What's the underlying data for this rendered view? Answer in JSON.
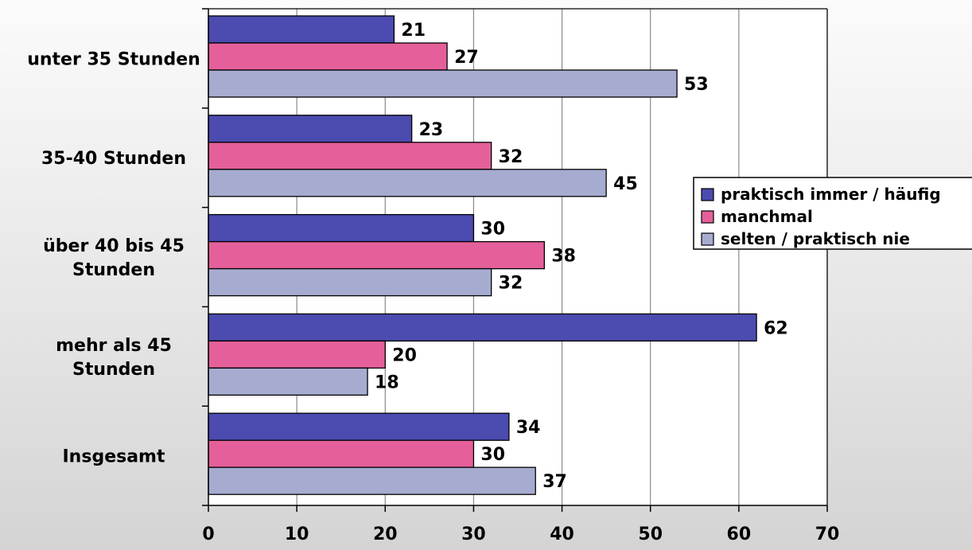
{
  "chart_data": {
    "type": "bar",
    "orientation": "horizontal",
    "categories": [
      "unter 35 Stunden",
      "35-40 Stunden",
      "über 40 bis 45 Stunden",
      "mehr als 45 Stunden",
      "Insgesamt"
    ],
    "series": [
      {
        "name": "praktisch immer / häufig",
        "color": "#4B4BB0",
        "values": [
          21,
          23,
          30,
          62,
          34
        ]
      },
      {
        "name": "manchmal",
        "color": "#E5609A",
        "values": [
          27,
          32,
          38,
          20,
          30
        ]
      },
      {
        "name": "selten / praktisch nie",
        "color": "#A6ABD0",
        "values": [
          53,
          45,
          32,
          18,
          37
        ]
      }
    ],
    "xticks": [
      0,
      10,
      20,
      30,
      40,
      50,
      60,
      70
    ],
    "xlim": [
      0,
      70
    ],
    "grid": "vertical",
    "legend": "right",
    "data_labels": true
  }
}
